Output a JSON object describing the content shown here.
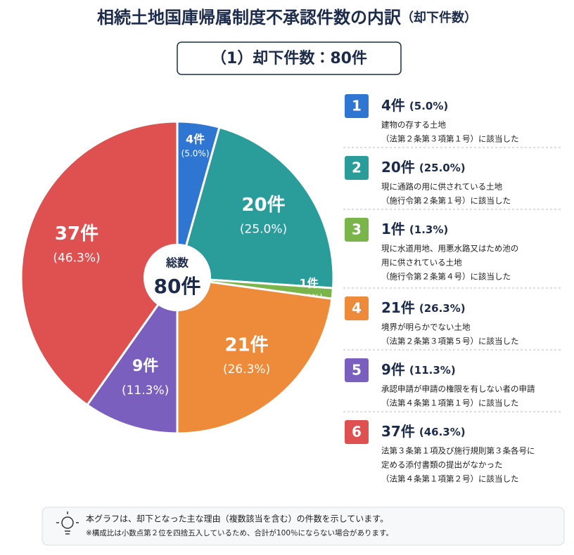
{
  "chart_data": {
    "type": "pie",
    "title": "相続土地国庫帰属制度不承認件数の内訳",
    "subtitle": "（却下件数）",
    "heading": "（1）却下件数：80件",
    "center_title": "総数",
    "center_label": "80件",
    "categories": [
      "1",
      "2",
      "3",
      "4",
      "5",
      "6"
    ],
    "values": [
      4,
      20,
      1,
      21,
      9,
      37
    ],
    "value_labels": [
      "4件",
      "20件",
      "1件",
      "21件",
      "9件",
      "37件"
    ],
    "percents": [
      5.0,
      25.0,
      1.3,
      26.3,
      11.3,
      46.3
    ],
    "percent_labels": [
      "(5.0%)",
      "(25.0%)",
      "(1.3%)",
      "(26.3%)",
      "(11.3%)",
      "(46.3%)"
    ],
    "colors": [
      "#2f76d2",
      "#2a9d9b",
      "#79b54a",
      "#ee8b3b",
      "#7a5fbe",
      "#df5050"
    ],
    "descriptions": [
      [
        "建物の存する土地",
        "（法第２条第３項第１号）に該当した"
      ],
      [
        "現に通路の用に供されている土地",
        "（施行令第２条第１号）に該当した"
      ],
      [
        "現に水道用地、用悪水路又はため池の",
        "用に供されている土地",
        "（施行令第２条第４号）に該当した"
      ],
      [
        "境界が明らかでない土地",
        "（法第２条第３項第５号）に該当した"
      ],
      [
        "承認申請が申請の権限を有しない者の申請",
        "（法第４条第１項第１号）に該当した"
      ],
      [
        "法第３条第１項及び施行規則第３条各号に",
        "定める添付書類の提出がなかった",
        "（法第４条第１項第２号）に該当した"
      ]
    ],
    "notes": [
      "本グラフは、却下となった主な理由（複数該当を含む）の件数を示しています。",
      "※構成比は小数点第２位を四捨五入しているため、合計が100％にならない場合があります。"
    ]
  }
}
